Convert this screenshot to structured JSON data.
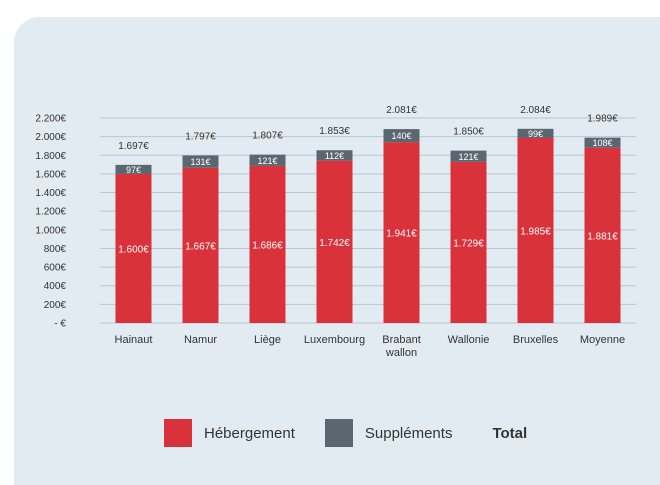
{
  "chart_data": {
    "type": "bar",
    "stacked": true,
    "categories": [
      "Hainaut",
      "Namur",
      "Liège",
      "Luxembourg",
      "Brabant wallon",
      "Wallonie",
      "Bruxelles",
      "Moyenne"
    ],
    "category_lines": [
      [
        "Hainaut"
      ],
      [
        "Namur"
      ],
      [
        "Liège"
      ],
      [
        "Luxembourg"
      ],
      [
        "Brabant",
        "wallon"
      ],
      [
        "Wallonie"
      ],
      [
        "Bruxelles"
      ],
      [
        "Moyenne"
      ]
    ],
    "series": [
      {
        "name": "Hébergement",
        "color": "#d9323a",
        "values": [
          1600,
          1667,
          1686,
          1742,
          1941,
          1729,
          1985,
          1881
        ],
        "labels": [
          "1.600€",
          "1.667€",
          "1.686€",
          "1.742€",
          "1.941€",
          "1.729€",
          "1.985€",
          "1.881€"
        ]
      },
      {
        "name": "Suppléments",
        "color": "#5b6770",
        "values": [
          97,
          131,
          121,
          112,
          140,
          121,
          99,
          108
        ],
        "labels": [
          "97€",
          "131€",
          "121€",
          "112€",
          "140€",
          "121€",
          "99€",
          "108€"
        ]
      }
    ],
    "totals": {
      "name": "Total",
      "values": [
        1697,
        1797,
        1807,
        1853,
        2081,
        1850,
        2084,
        1989
      ],
      "labels": [
        "1.697€",
        "1.797€",
        "1.807€",
        "1.853€",
        "2.081€",
        "1.850€",
        "2.084€",
        "1.989€"
      ]
    },
    "ylim": [
      0,
      2200
    ],
    "yticks": [
      0,
      200,
      400,
      600,
      800,
      1000,
      1200,
      1400,
      1600,
      1800,
      2000,
      2200
    ],
    "ytick_labels": [
      "- €",
      "200€",
      "400€",
      "600€",
      "800€",
      "1.000€",
      "1.200€",
      "1.400€",
      "1.600€",
      "1.800€",
      "2.000€",
      "2.200€"
    ],
    "grid": true,
    "legend_position": "bottom"
  },
  "legend": {
    "hebergement": "Hébergement",
    "supplements": "Suppléments",
    "total": "Total",
    "hebergement_color": "#d9323a",
    "supplements_color": "#5b6770"
  }
}
